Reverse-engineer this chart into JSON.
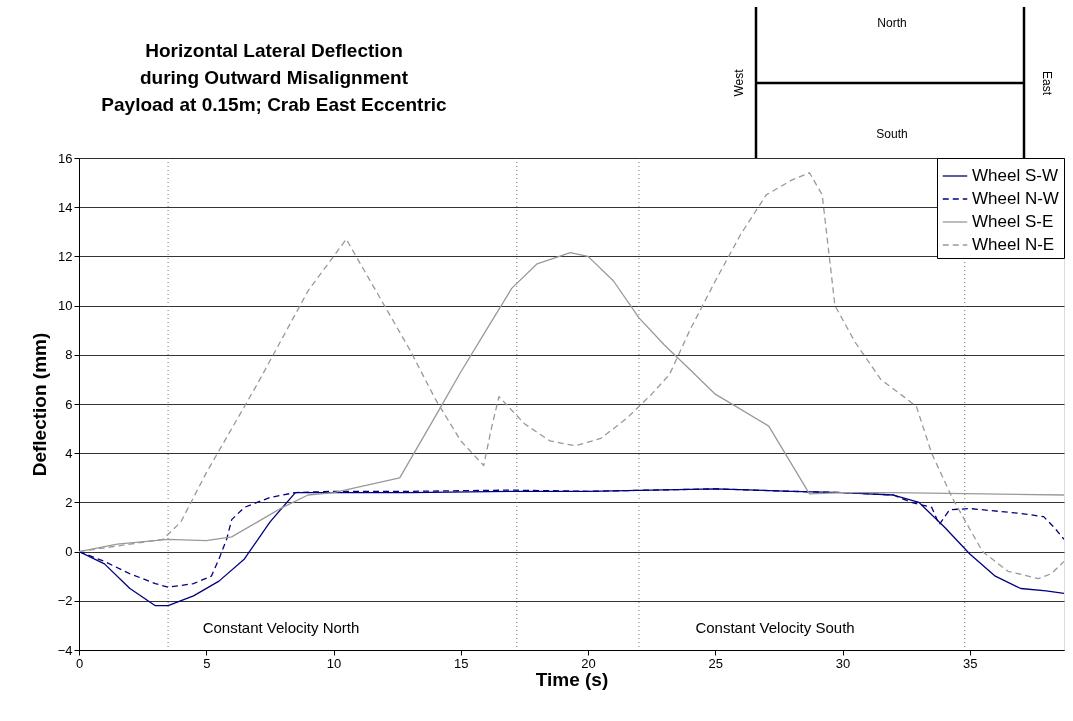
{
  "chart_data": {
    "type": "line",
    "title": "Horizontal Lateral Deflection\nduring Outward Misalignment\nPayload at 0.15m; Crab East Eccentric",
    "xlabel": "Time (s)",
    "ylabel": "Deflection (mm)",
    "xlim": [
      0,
      38.7
    ],
    "ylim": [
      -4,
      16
    ],
    "xticks": [
      0,
      5,
      10,
      15,
      20,
      25,
      30,
      35
    ],
    "yticks": [
      -4,
      -2,
      0,
      2,
      4,
      6,
      8,
      10,
      12,
      14,
      16
    ],
    "grid": "y",
    "legend": "top right",
    "marker": "none",
    "series": [
      {
        "name": "Wheel S-W",
        "color": "#000080",
        "line_style": "solid",
        "x": [
          0,
          1,
          2,
          3,
          3.5,
          4.5,
          5.5,
          6.5,
          7.5,
          8.5,
          10,
          13,
          17,
          20,
          25,
          28,
          30,
          32,
          33,
          34,
          35,
          36,
          37,
          38,
          38.7
        ],
        "values": [
          0,
          -0.5,
          -1.5,
          -2.2,
          -2.2,
          -1.8,
          -1.2,
          -0.3,
          1.2,
          2.4,
          2.4,
          2.4,
          2.45,
          2.45,
          2.55,
          2.45,
          2.4,
          2.3,
          2.0,
          1.0,
          -0.1,
          -1.0,
          -1.5,
          -1.6,
          -1.7
        ]
      },
      {
        "name": "Wheel N-W",
        "color": "#000080",
        "line_style": "dashed",
        "x": [
          0,
          1,
          2,
          3,
          3.5,
          4.5,
          5.2,
          5.5,
          5.8,
          6,
          6.5,
          7.5,
          8.5,
          10,
          13,
          17,
          20,
          25,
          28,
          30,
          32,
          32.7,
          33.5,
          33.8,
          34.2,
          35,
          37,
          37.9,
          38.3,
          38.7
        ],
        "values": [
          0,
          -0.4,
          -0.9,
          -1.3,
          -1.45,
          -1.3,
          -1.0,
          -0.3,
          0.5,
          1.3,
          1.8,
          2.2,
          2.4,
          2.45,
          2.45,
          2.5,
          2.45,
          2.55,
          2.45,
          2.4,
          2.3,
          2.0,
          1.8,
          1.1,
          1.7,
          1.75,
          1.55,
          1.42,
          1.0,
          0.5
        ]
      },
      {
        "name": "Wheel S-E",
        "color": "#999999",
        "line_style": "solid",
        "x": [
          0,
          1.5,
          3.5,
          5,
          6,
          7,
          8,
          9,
          10,
          12.6,
          14,
          15,
          16,
          17,
          18,
          19.3,
          20,
          21,
          22,
          23,
          24,
          25,
          27.1,
          28.7,
          30,
          32,
          38.7
        ],
        "values": [
          0,
          0.3,
          0.5,
          0.45,
          0.6,
          1.2,
          1.8,
          2.3,
          2.4,
          3.0,
          5.5,
          7.3,
          9.0,
          10.7,
          11.7,
          12.15,
          12.0,
          11.0,
          9.5,
          8.4,
          7.4,
          6.4,
          5.1,
          2.35,
          2.4,
          2.4,
          2.3
        ]
      },
      {
        "name": "Wheel N-E",
        "color": "#999999",
        "line_style": "dashed",
        "x": [
          0,
          3.3,
          4,
          5,
          6,
          7,
          8,
          9,
          10.5,
          11,
          12,
          13,
          14,
          15,
          15.9,
          16.2,
          16.5,
          17.5,
          18.5,
          19.5,
          20.5,
          21.5,
          22.5,
          23.2,
          24,
          25,
          26,
          27,
          28,
          28.7,
          29.2,
          29.7,
          30.5,
          31.5,
          32.4,
          32.9,
          33.5,
          34.3,
          35.5,
          36.5,
          37.7,
          38.2,
          38.7
        ],
        "values": [
          0,
          0.5,
          1.2,
          3.2,
          5.0,
          6.8,
          8.7,
          10.6,
          12.7,
          11.8,
          10.0,
          8.2,
          6.2,
          4.5,
          3.5,
          5.0,
          6.3,
          5.2,
          4.5,
          4.3,
          4.6,
          5.4,
          6.4,
          7.2,
          9.0,
          11.0,
          12.9,
          14.5,
          15.1,
          15.4,
          14.5,
          10.0,
          8.5,
          7.0,
          6.3,
          5.9,
          4.0,
          2.2,
          0.0,
          -0.8,
          -1.1,
          -0.9,
          -0.4
        ]
      }
    ],
    "ref_lines": [
      {
        "axis": "x",
        "value": 3.5,
        "line_style": "dotted",
        "color": "#555555"
      },
      {
        "axis": "x",
        "value": 17.2,
        "line_style": "dotted",
        "color": "#555555"
      },
      {
        "axis": "x",
        "value": 22,
        "line_style": "dotted",
        "color": "#555555"
      },
      {
        "axis": "x",
        "value": 34.8,
        "line_style": "dotted",
        "color": "#555555"
      }
    ],
    "annotations": [
      "Constant Velocity North",
      "Constant Velocity South",
      "North",
      "South",
      "West",
      "East"
    ]
  }
}
